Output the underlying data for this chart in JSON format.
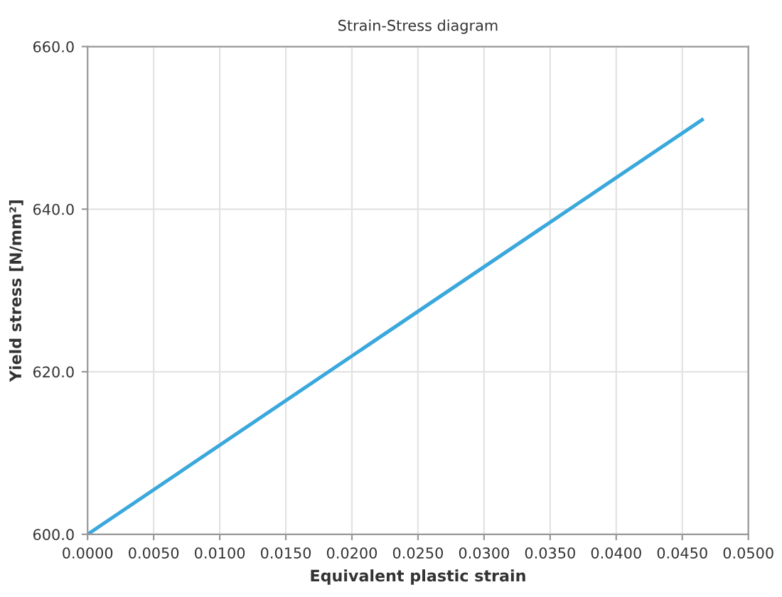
{
  "chart_data": {
    "type": "line",
    "title": "Strain-Stress diagram",
    "xlabel": "Equivalent plastic strain",
    "ylabel": "Yield stress [N/mm²]",
    "x": [
      0.0,
      0.0465
    ],
    "series": [
      {
        "color": "#3aa8dc",
        "values": [
          600.0,
          651.0
        ]
      }
    ],
    "xlim": [
      0.0,
      0.05
    ],
    "ylim": [
      600.0,
      660.0
    ],
    "xticks": [
      {
        "value": 0.0,
        "label": "0.0000"
      },
      {
        "value": 0.005,
        "label": "0.0050"
      },
      {
        "value": 0.01,
        "label": "0.0100"
      },
      {
        "value": 0.015,
        "label": "0.0150"
      },
      {
        "value": 0.02,
        "label": "0.0200"
      },
      {
        "value": 0.025,
        "label": "0.0250"
      },
      {
        "value": 0.03,
        "label": "0.0300"
      },
      {
        "value": 0.035,
        "label": "0.0350"
      },
      {
        "value": 0.04,
        "label": "0.0400"
      },
      {
        "value": 0.045,
        "label": "0.0450"
      },
      {
        "value": 0.05,
        "label": "0.0500"
      }
    ],
    "yticks": [
      {
        "value": 600.0,
        "label": "600.0"
      },
      {
        "value": 620.0,
        "label": "620.0"
      },
      {
        "value": 640.0,
        "label": "640.0"
      },
      {
        "value": 660.0,
        "label": "660.0"
      }
    ],
    "grid": true,
    "marker": "none",
    "line_style": "solid"
  }
}
